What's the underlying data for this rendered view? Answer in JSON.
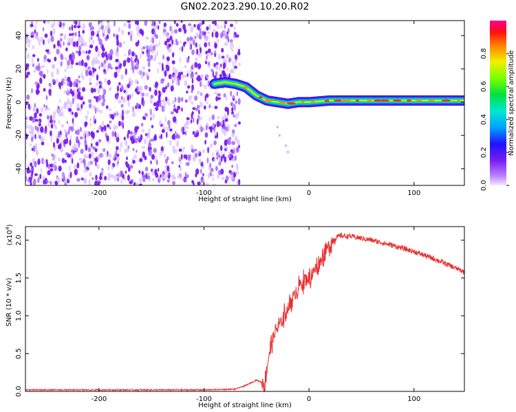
{
  "title": "GN02.2023.290.10.20.R02",
  "colors": {
    "snr_line": "#e83030",
    "noise_purple": "#7a1ef0",
    "axis": "#000000"
  },
  "chart_data": [
    {
      "type": "heatmap",
      "xlabel": "Height of straight line (km)",
      "ylabel": "Frequency (Hz)",
      "xlim": [
        -270,
        148
      ],
      "ylim": [
        -50,
        49
      ],
      "xticks": [
        -200,
        -100,
        0,
        100
      ],
      "yticks": [
        -40,
        -20,
        0,
        20,
        40
      ],
      "noise_region_x": [
        -270,
        -70
      ],
      "signal_track": {
        "x": [
          -90,
          -80,
          -70,
          -60,
          -50,
          -40,
          -30,
          -20,
          -10,
          0,
          20,
          40,
          60,
          80,
          100,
          120,
          148
        ],
        "freq": [
          11,
          12,
          11,
          9,
          4,
          1,
          0,
          -1,
          0,
          0,
          1,
          1,
          1,
          1,
          1,
          1,
          1
        ]
      },
      "colorbar": {
        "label": "Normalized spectral amplitude",
        "range": [
          0,
          1
        ],
        "ticks": [
          0.0,
          0.2,
          0.4,
          0.6,
          0.8
        ]
      }
    },
    {
      "type": "line",
      "xlabel": "Height of straight line (km)",
      "ylabel": "SNR (10 * v/v)",
      "scale_label": "(x10",
      "scale_exponent": "4",
      "scale_close": ")",
      "xlim": [
        -270,
        148
      ],
      "ylim": [
        0,
        2.18
      ],
      "xticks": [
        -200,
        -100,
        0,
        100
      ],
      "yticks": [
        0.0,
        0.5,
        1.0,
        1.5,
        2.0
      ],
      "series": [
        {
          "x": [
            -270,
            -200,
            -100,
            -70,
            -60,
            -50,
            -42,
            -38,
            -32,
            -25,
            -20,
            -10,
            0,
            5,
            10,
            15,
            20,
            25,
            30,
            40,
            60,
            80,
            100,
            120,
            148
          ],
          "y": [
            0.02,
            0.02,
            0.02,
            0.03,
            0.08,
            0.15,
            0.1,
            0.5,
            0.8,
            0.95,
            1.1,
            1.4,
            1.5,
            1.6,
            1.7,
            1.85,
            1.95,
            2.03,
            2.06,
            2.05,
            2.0,
            1.93,
            1.85,
            1.75,
            1.58
          ]
        }
      ]
    }
  ]
}
